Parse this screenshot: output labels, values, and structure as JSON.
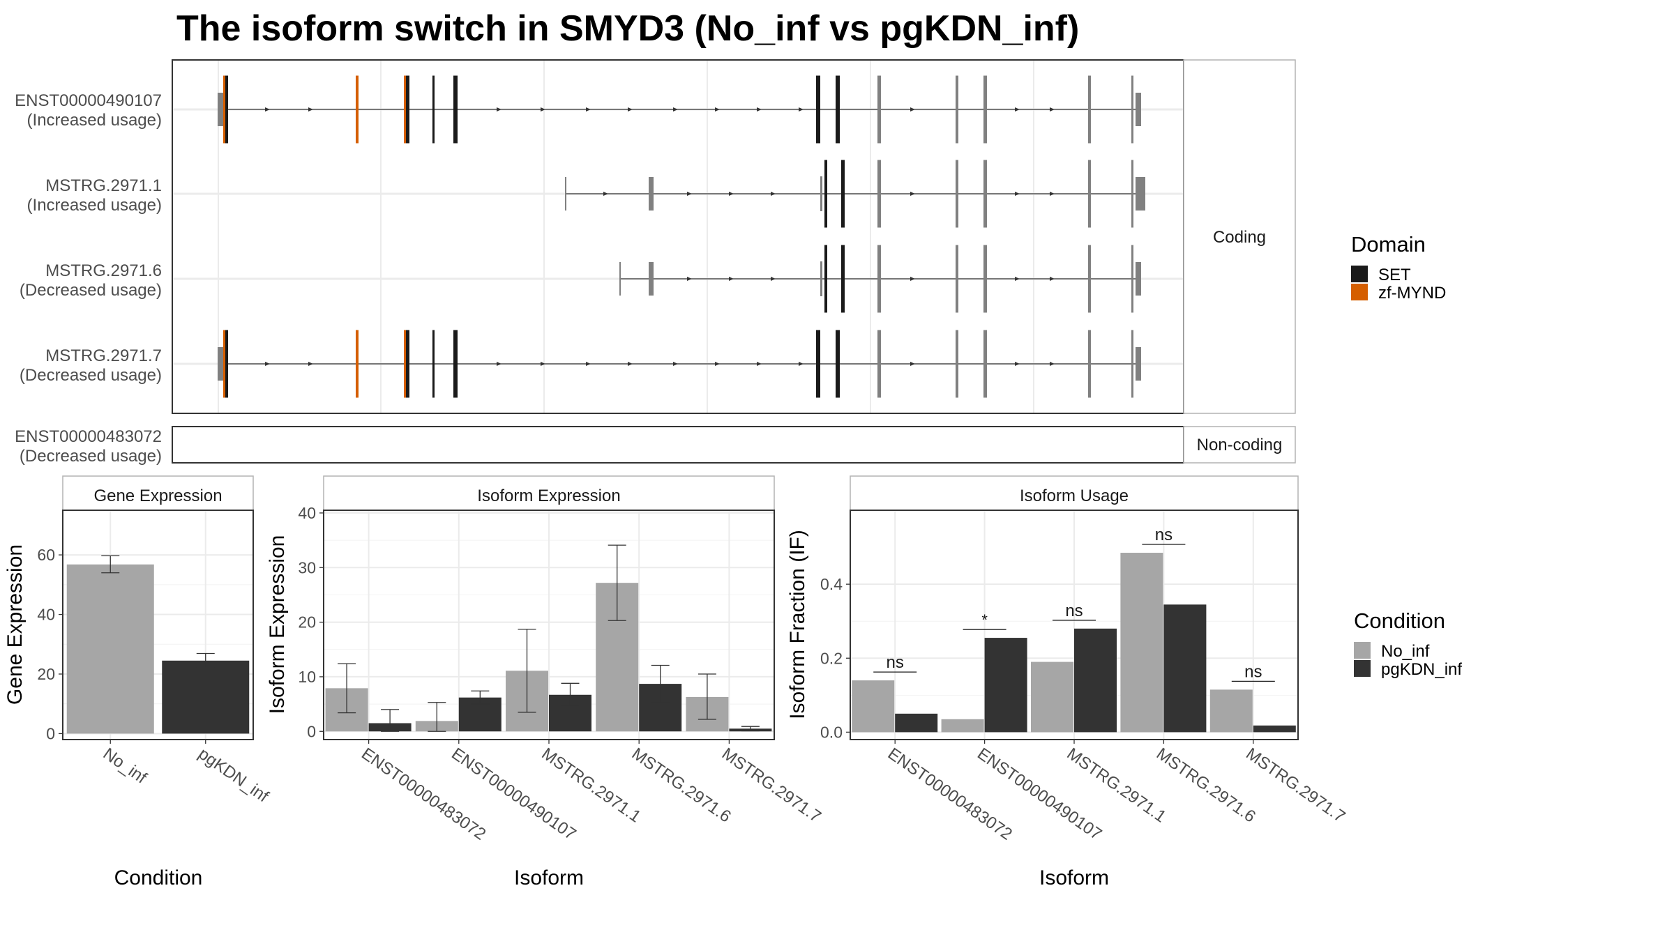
{
  "title": "The isoform switch in SMYD3 (No_inf vs pgKDN_inf)",
  "structure": {
    "isoforms": [
      {
        "id": "ENST00000490107",
        "usage": "(Increased usage)",
        "group": "Coding"
      },
      {
        "id": "MSTRG.2971.1",
        "usage": "(Increased usage)",
        "group": "Coding"
      },
      {
        "id": "MSTRG.2971.6",
        "usage": "(Decreased usage)",
        "group": "Coding"
      },
      {
        "id": "MSTRG.2971.7",
        "usage": "(Decreased usage)",
        "group": "Coding"
      },
      {
        "id": "ENST00000483072",
        "usage": "(Decreased usage)",
        "group": "Non-coding"
      }
    ],
    "facets": [
      "Coding",
      "Non-coding"
    ],
    "legend_title": "Domain",
    "legend": [
      {
        "label": "SET",
        "color": "#1a1a1a"
      },
      {
        "label": "zf-MYND",
        "color": "#d55e00"
      }
    ],
    "exon_color": "#808080"
  },
  "conditions": {
    "legend_title": "Condition",
    "items": [
      {
        "label": "No_inf",
        "color": "#a6a6a6"
      },
      {
        "label": "pgKDN_inf",
        "color": "#333333"
      }
    ]
  },
  "chart_data": [
    {
      "type": "bar",
      "title": "Gene Expression",
      "xlabel": "Condition",
      "ylabel": "Gene Expression",
      "categories": [
        "No_inf",
        "pgKDN_inf"
      ],
      "values": [
        56.8,
        24.5
      ],
      "errors": [
        [
          54.0,
          59.7
        ],
        [
          22.2,
          26.9
        ]
      ],
      "ylim": [
        -2,
        75
      ],
      "yticks": [
        0,
        20,
        40,
        60
      ],
      "grid": true
    },
    {
      "type": "bar",
      "title": "Isoform Expression",
      "xlabel": "Isoform",
      "ylabel": "Isoform Expression",
      "categories": [
        "ENST00000483072",
        "ENST00000490107",
        "MSTRG.2971.1",
        "MSTRG.2971.6",
        "MSTRG.2971.7"
      ],
      "series": [
        {
          "name": "No_inf",
          "values": [
            7.9,
            1.9,
            11.1,
            27.2,
            6.3
          ],
          "errors": [
            [
              3.4,
              12.4
            ],
            [
              0,
              5.3
            ],
            [
              3.5,
              18.7
            ],
            [
              20.3,
              34.1
            ],
            [
              2.2,
              10.5
            ]
          ]
        },
        {
          "name": "pgKDN_inf",
          "values": [
            1.5,
            6.2,
            6.7,
            8.7,
            0.5
          ],
          "errors": [
            [
              0,
              4.0
            ],
            [
              5.0,
              7.4
            ],
            [
              4.8,
              8.8
            ],
            [
              5.3,
              12.1
            ],
            [
              0.1,
              0.9
            ]
          ]
        }
      ],
      "ylim": [
        -1.5,
        40.5
      ],
      "yticks": [
        0,
        10,
        20,
        30,
        40
      ],
      "grid": true
    },
    {
      "type": "bar",
      "title": "Isoform Usage",
      "xlabel": "Isoform",
      "ylabel": "Isoform Fraction (IF)",
      "categories": [
        "ENST00000483072",
        "ENST00000490107",
        "MSTRG.2971.1",
        "MSTRG.2971.6",
        "MSTRG.2971.7"
      ],
      "series": [
        {
          "name": "No_inf",
          "values": [
            0.14,
            0.035,
            0.19,
            0.485,
            0.115
          ]
        },
        {
          "name": "pgKDN_inf",
          "values": [
            0.05,
            0.255,
            0.28,
            0.345,
            0.018
          ]
        }
      ],
      "significance": [
        "ns",
        "*",
        "ns",
        "ns",
        "ns"
      ],
      "ylim": [
        -0.02,
        0.6
      ],
      "yticks": [
        0.0,
        0.2,
        0.4
      ],
      "ytick_labels": [
        "0.0",
        "0.2",
        "0.4"
      ],
      "grid": true
    }
  ]
}
